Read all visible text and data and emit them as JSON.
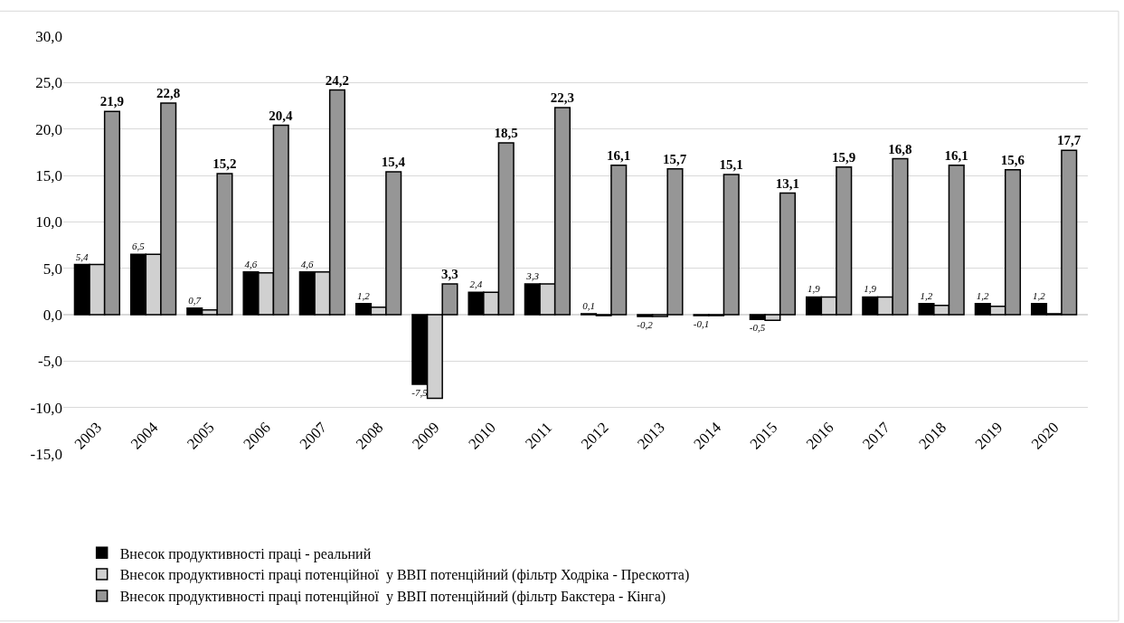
{
  "chart_data": {
    "type": "bar",
    "categories": [
      "2003",
      "2004",
      "2005",
      "2006",
      "2007",
      "2008",
      "2009",
      "2010",
      "2011",
      "2012",
      "2013",
      "2014",
      "2015",
      "2016",
      "2017",
      "2018",
      "2019",
      "2020"
    ],
    "series": [
      {
        "name": "Внесок продуктивності праці - реальний",
        "color": "#000000",
        "values": [
          5.4,
          6.5,
          0.7,
          4.6,
          4.6,
          1.2,
          -7.5,
          2.4,
          3.3,
          0.1,
          -0.2,
          -0.1,
          -0.5,
          1.9,
          1.9,
          1.2,
          1.2,
          1.2
        ],
        "value_labels": [
          "5,4",
          "6,5",
          "0,7",
          "4,6",
          "4,6",
          "1,2",
          "-7,5",
          "2,4",
          "3,3",
          "0,1",
          "-0,2",
          "-0,1",
          "-0,5",
          "1,9",
          "1,9",
          "1,2",
          "1,2",
          "1,2"
        ]
      },
      {
        "name": "Внесок продуктивності праці потенційної  у ВВП потенційний (фільтр Ходріка - Прескотта)",
        "color": "#d0d0d0",
        "values": [
          5.4,
          6.5,
          0.5,
          4.5,
          4.6,
          0.8,
          -9.0,
          2.4,
          3.3,
          -0.1,
          -0.2,
          -0.1,
          -0.6,
          1.9,
          1.9,
          1.0,
          0.9,
          0.1
        ]
      },
      {
        "name": "Внесок продуктивності праці потенційної  у ВВП потенційний (фільтр Бакстера - Кінга)",
        "color": "#969696",
        "values": [
          21.9,
          22.8,
          15.2,
          20.4,
          24.2,
          15.4,
          3.3,
          18.5,
          22.3,
          16.1,
          15.7,
          15.1,
          13.1,
          15.9,
          16.8,
          16.1,
          15.6,
          17.7
        ],
        "value_labels": [
          "21,9",
          "22,8",
          "15,2",
          "20,4",
          "24,2",
          "15,4",
          "3,3",
          "18,5",
          "22,3",
          "16,1",
          "15,7",
          "15,1",
          "13,1",
          "15,9",
          "16,8",
          "16,1",
          "15,6",
          "17,7"
        ]
      }
    ],
    "ylim": [
      -15,
      30
    ],
    "yticks": [
      {
        "value": -15,
        "label": "-15,0"
      },
      {
        "value": -10,
        "label": "-10,0"
      },
      {
        "value": -5,
        "label": "-5,0"
      },
      {
        "value": 0,
        "label": "0,0"
      },
      {
        "value": 5,
        "label": "5,0"
      },
      {
        "value": 10,
        "label": "10,0"
      },
      {
        "value": 15,
        "label": "15,0"
      },
      {
        "value": 20,
        "label": "20,0"
      },
      {
        "value": 25,
        "label": "25,0"
      },
      {
        "value": 30,
        "label": "30,0"
      }
    ],
    "grid": "y",
    "legend": "bottom"
  }
}
